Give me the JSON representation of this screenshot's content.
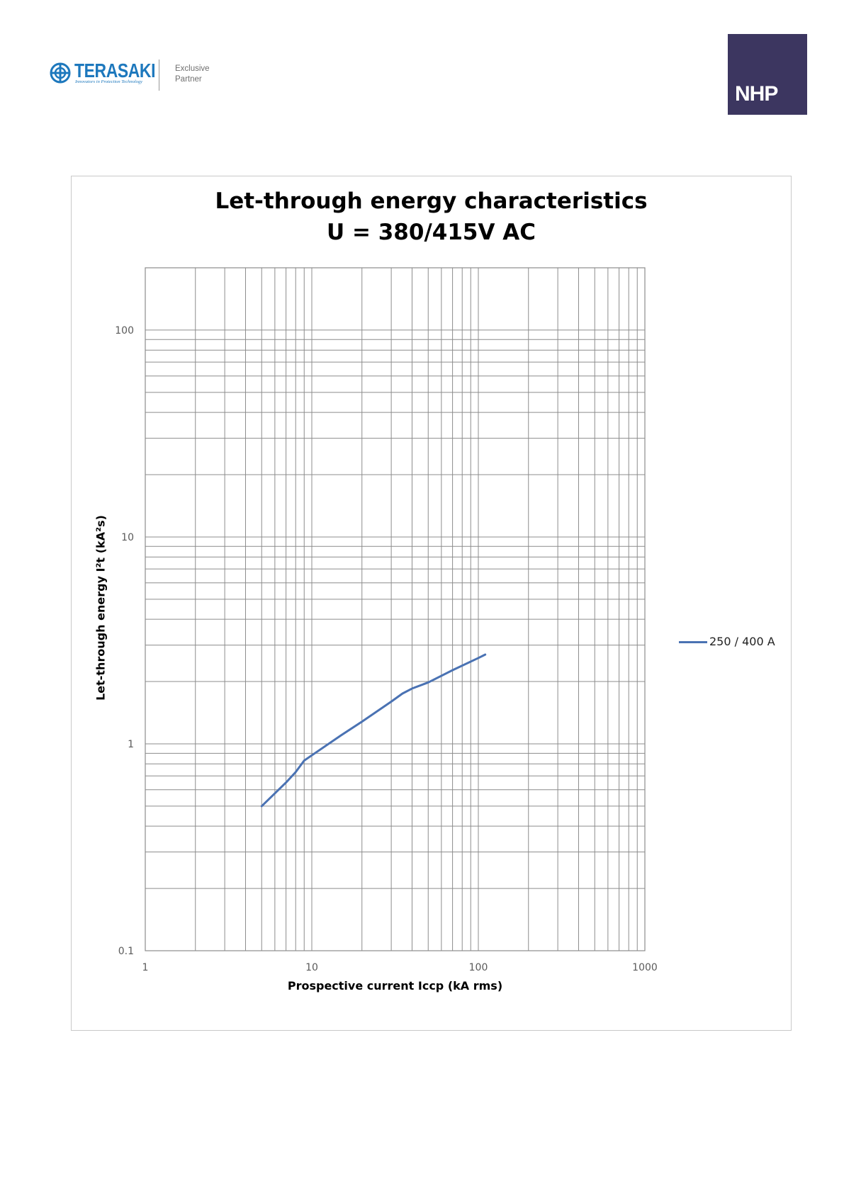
{
  "header": {
    "terasaki_name": "TERASAKI",
    "terasaki_tagline": "Innovators in Protection Technology",
    "partner_line1": "Exclusive",
    "partner_line2": "Partner",
    "nhp_text": "NHP",
    "brand_color": "#1d78bd",
    "nhp_color": "#3c3660"
  },
  "chart_data": {
    "type": "line",
    "title": "Let-through energy characteristics",
    "subtitle": "U = 380/415V AC",
    "xlabel": "Prospective current Iccp (kA rms)",
    "ylabel": "Let-through energy I²t (kA²s)",
    "x_scale": "log",
    "y_scale": "log",
    "xlim": [
      1,
      1000
    ],
    "ylim": [
      0.1,
      200
    ],
    "x_ticks": [
      1,
      10,
      100,
      1000
    ],
    "x_tick_labels": [
      "1",
      "10",
      "100",
      "1000"
    ],
    "y_ticks": [
      0.1,
      1,
      10,
      100
    ],
    "y_tick_labels": [
      "0.1",
      "1",
      "10",
      "100"
    ],
    "grid": true,
    "legend_position": "right",
    "series": [
      {
        "name": "250 / 400 A",
        "color": "#4a72b3",
        "x": [
          5,
          7,
          8,
          9,
          10,
          15,
          20,
          30,
          35,
          40,
          50,
          70,
          100,
          110
        ],
        "y": [
          0.5,
          0.65,
          0.73,
          0.83,
          0.88,
          1.1,
          1.28,
          1.6,
          1.75,
          1.85,
          1.98,
          2.27,
          2.6,
          2.7
        ]
      }
    ]
  }
}
